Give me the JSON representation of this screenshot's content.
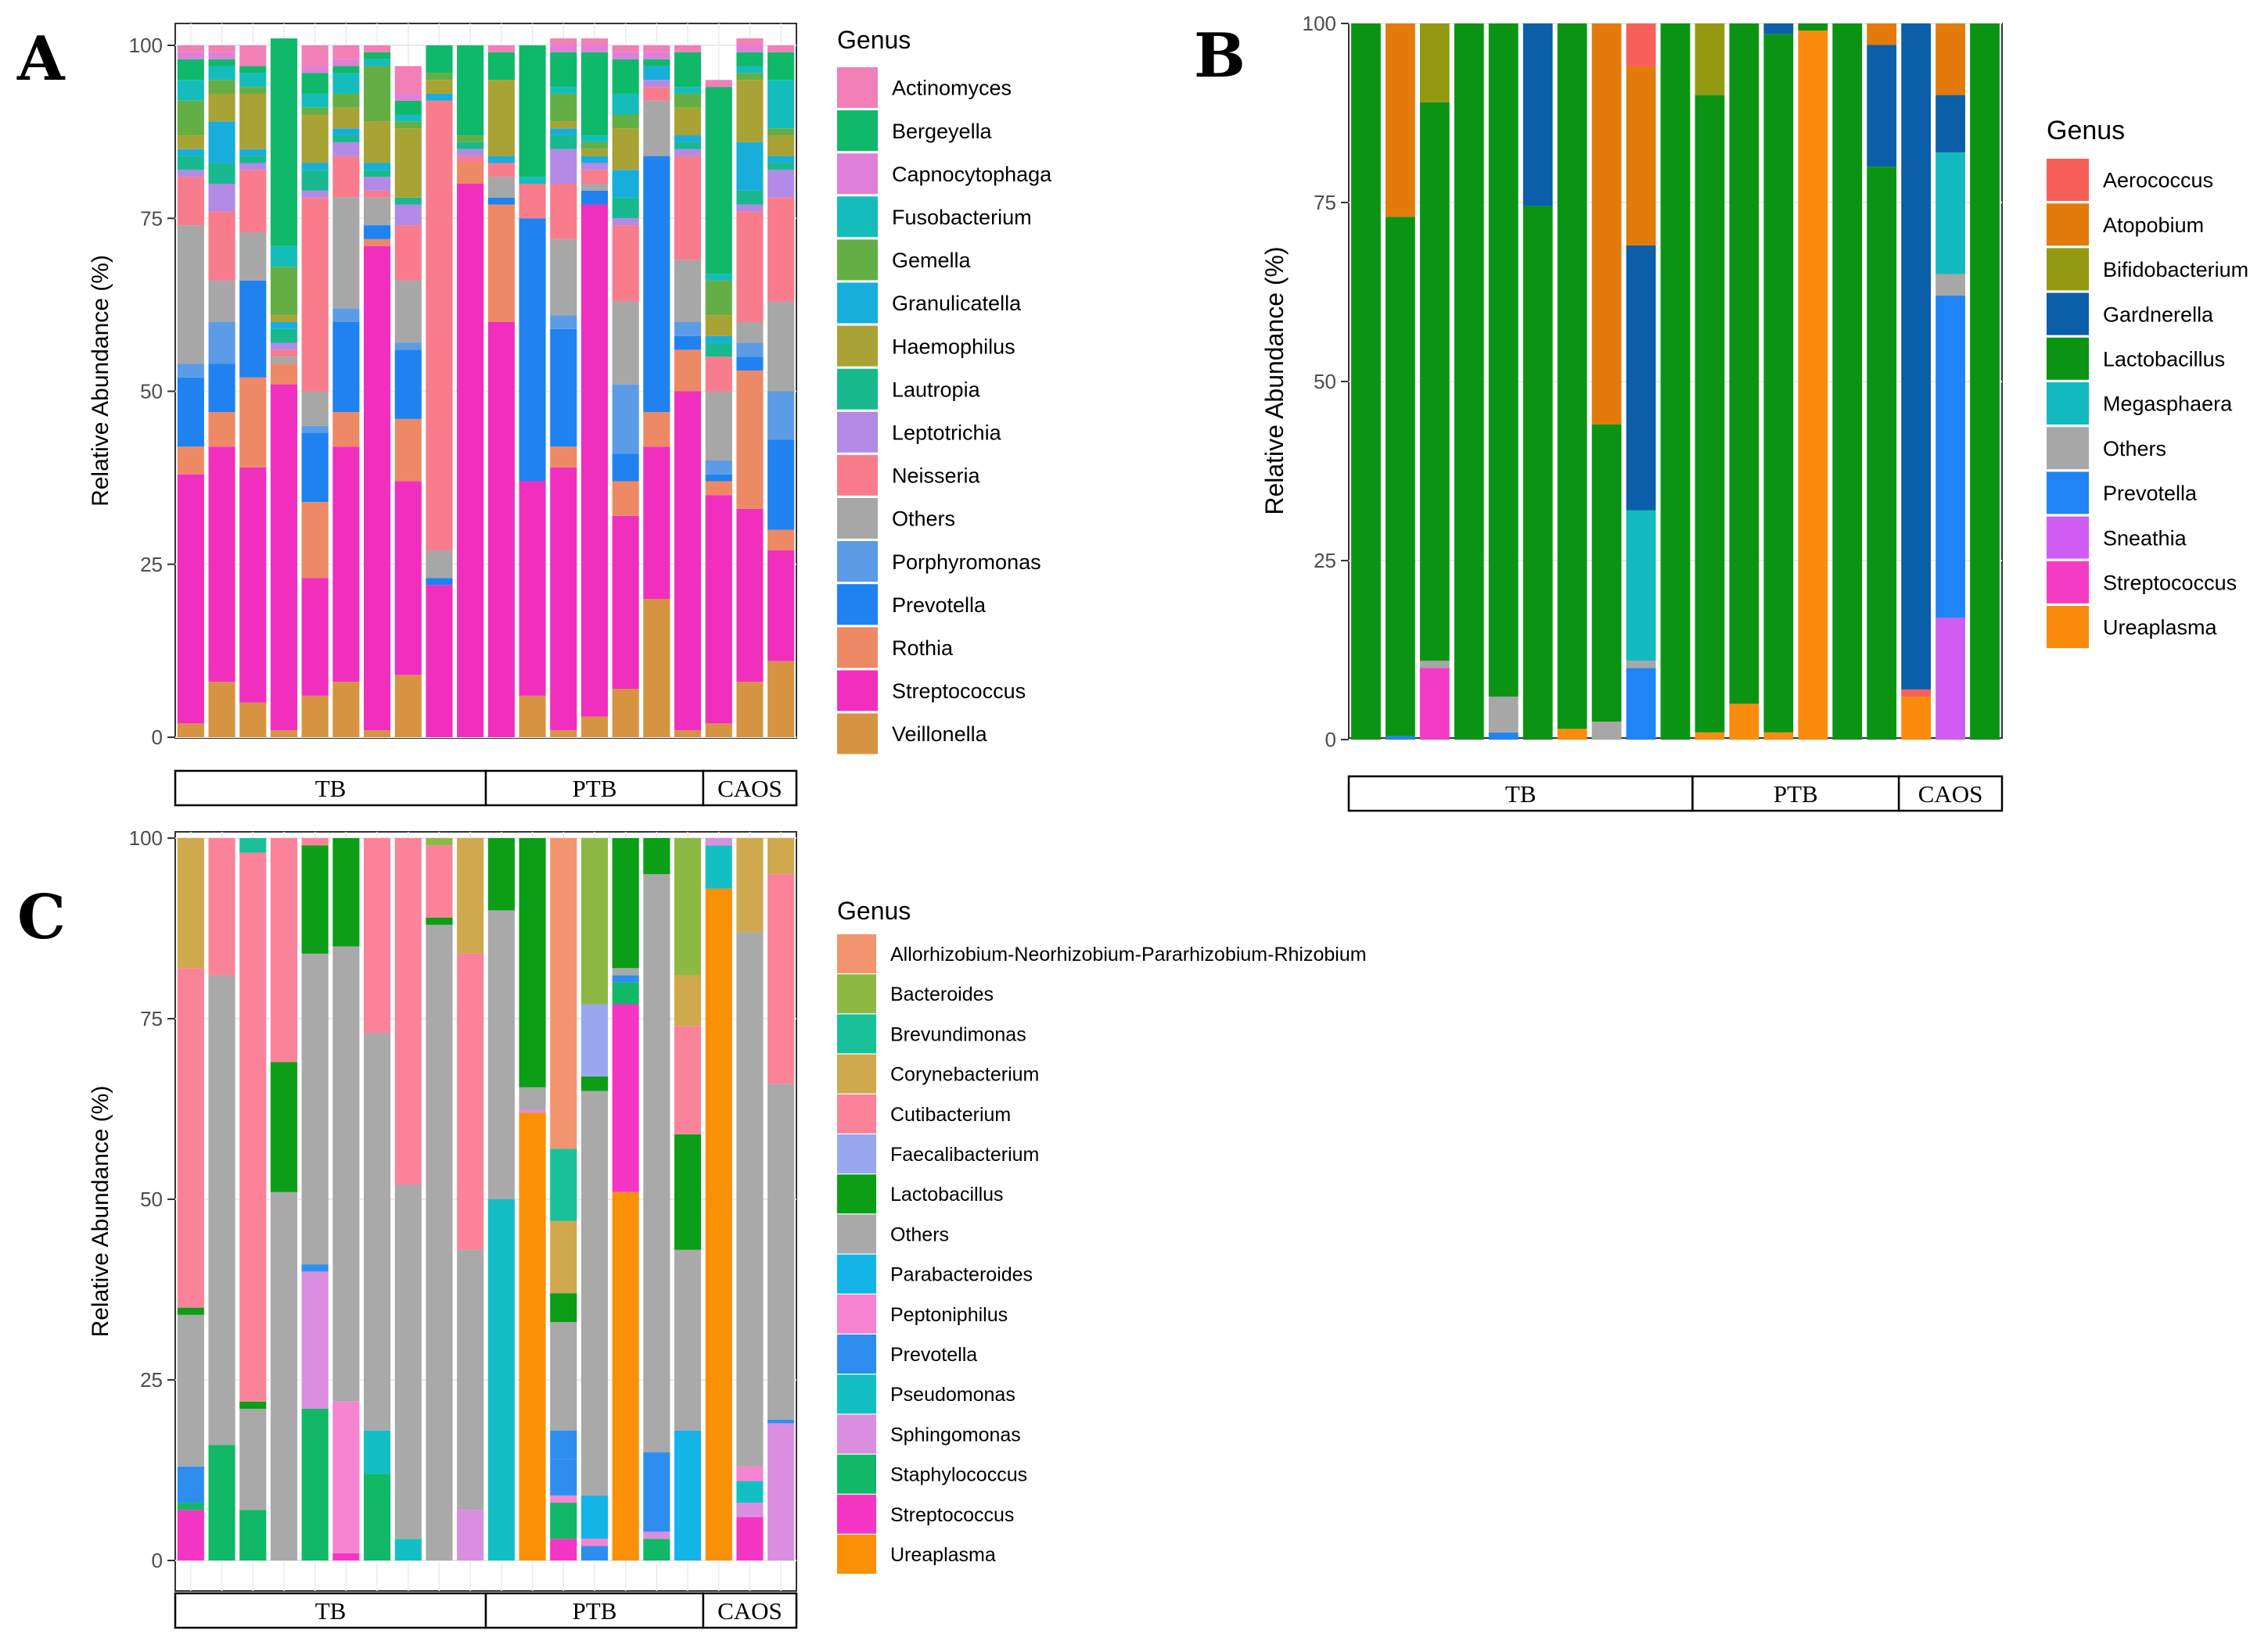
{
  "chart_data": [
    {
      "panel": "A",
      "type": "stacked-bar",
      "ylabel": "Relative Abundance (%)",
      "ylim": [
        0,
        100
      ],
      "yticks": [
        0,
        25,
        50,
        75,
        100
      ],
      "legend_title": "Genus",
      "groups": [
        {
          "label": "TB",
          "count": 10
        },
        {
          "label": "PTB",
          "count": 7
        },
        {
          "label": "CAOS",
          "count": 3
        }
      ],
      "genera": [
        {
          "name": "Actinomyces",
          "color": "#F27FB6"
        },
        {
          "name": "Bergeyella",
          "color": "#10B86A"
        },
        {
          "name": "Capnocytophaga",
          "color": "#E07FD8"
        },
        {
          "name": "Fusobacterium",
          "color": "#14BDBB"
        },
        {
          "name": "Gemella",
          "color": "#63AF45"
        },
        {
          "name": "Granulicatella",
          "color": "#17AEDC"
        },
        {
          "name": "Haemophilus",
          "color": "#A9A234"
        },
        {
          "name": "Lautropia",
          "color": "#19B98F"
        },
        {
          "name": "Leptotrichia",
          "color": "#B38AE6"
        },
        {
          "name": "Neisseria",
          "color": "#F87C8C"
        },
        {
          "name": "Others",
          "color": "#A7A7A7"
        },
        {
          "name": "Porphyromonas",
          "color": "#5C9CE6"
        },
        {
          "name": "Prevotella",
          "color": "#1F82F0"
        },
        {
          "name": "Rothia",
          "color": "#EE8966"
        },
        {
          "name": "Streptococcus",
          "color": "#F02FBF"
        },
        {
          "name": "Veillonella",
          "color": "#D69442"
        }
      ],
      "samples": [
        {
          "Veillonella": 2,
          "Streptococcus": 36,
          "Rothia": 4,
          "Prevotella": 10,
          "Porphyromonas": 2,
          "Others": 20,
          "Neisseria": 7,
          "Leptotrichia": 1,
          "Lautropia": 2,
          "Granulicatella": 1,
          "Haemophilus": 2,
          "Gemella": 5,
          "Fusobacterium": 3,
          "Bergeyella": 3,
          "Capnocytophaga": 1,
          "Actinomyces": 1
        },
        {
          "Veillonella": 8,
          "Streptococcus": 34,
          "Rothia": 5,
          "Prevotella": 7,
          "Porphyromonas": 6,
          "Others": 6,
          "Neisseria": 10,
          "Leptotrichia": 4,
          "Lautropia": 3,
          "Granulicatella": 6,
          "Haemophilus": 4,
          "Gemella": 2,
          "Fusobacterium": 2,
          "Bergeyella": 1,
          "Capnocytophaga": 1,
          "Actinomyces": 1
        },
        {
          "Veillonella": 5,
          "Streptococcus": 34,
          "Rothia": 13,
          "Prevotella": 14,
          "Porphyromonas": 0,
          "Others": 7,
          "Neisseria": 9,
          "Leptotrichia": 1,
          "Lautropia": 1,
          "Granulicatella": 1,
          "Haemophilus": 8,
          "Gemella": 1,
          "Fusobacterium": 2,
          "Bergeyella": 1,
          "Capnocytophaga": 0,
          "Actinomyces": 3
        },
        {
          "Veillonella": 1,
          "Streptococcus": 50,
          "Rothia": 3,
          "Prevotella": 0,
          "Porphyromonas": 0,
          "Others": 1,
          "Neisseria": 1,
          "Leptotrichia": 1,
          "Lautropia": 2,
          "Granulicatella": 1,
          "Haemophilus": 1,
          "Gemella": 7,
          "Fusobacterium": 3,
          "Bergeyella": 30,
          "Capnocytophaga": 0,
          "Actinomyces": 0
        },
        {
          "Veillonella": 6,
          "Streptococcus": 17,
          "Rothia": 11,
          "Prevotella": 10,
          "Porphyromonas": 1,
          "Others": 5,
          "Neisseria": 28,
          "Leptotrichia": 1,
          "Lautropia": 3,
          "Granulicatella": 1,
          "Haemophilus": 7,
          "Gemella": 1,
          "Fusobacterium": 2,
          "Bergeyella": 3,
          "Capnocytophaga": 1,
          "Actinomyces": 3
        },
        {
          "Veillonella": 8,
          "Streptococcus": 34,
          "Rothia": 5,
          "Prevotella": 13,
          "Porphyromonas": 2,
          "Others": 16,
          "Neisseria": 6,
          "Leptotrichia": 2,
          "Lautropia": 1,
          "Granulicatella": 1,
          "Haemophilus": 3,
          "Gemella": 2,
          "Fusobacterium": 3,
          "Bergeyella": 1,
          "Capnocytophaga": 1,
          "Actinomyces": 2
        },
        {
          "Veillonella": 1,
          "Streptococcus": 70,
          "Rothia": 1,
          "Prevotella": 2,
          "Porphyromonas": 0,
          "Others": 4,
          "Neisseria": 1,
          "Leptotrichia": 2,
          "Lautropia": 1,
          "Granulicatella": 1,
          "Haemophilus": 6,
          "Gemella": 8,
          "Fusobacterium": 1,
          "Bergeyella": 1,
          "Capnocytophaga": 0,
          "Actinomyces": 1
        },
        {
          "Veillonella": 9,
          "Streptococcus": 28,
          "Rothia": 9,
          "Prevotella": 10,
          "Porphyromonas": 1,
          "Others": 9,
          "Neisseria": 8,
          "Leptotrichia": 3,
          "Lautropia": 1,
          "Granulicatella": 0,
          "Haemophilus": 10,
          "Gemella": 1,
          "Fusobacterium": 1,
          "Bergeyella": 2,
          "Capnocytophaga": 1,
          "Actinomyces": 4
        },
        {
          "Veillonella": 0,
          "Streptococcus": 22,
          "Rothia": 0,
          "Prevotella": 1,
          "Porphyromonas": 0,
          "Others": 4,
          "Neisseria": 65,
          "Leptotrichia": 0,
          "Lautropia": 0,
          "Granulicatella": 1,
          "Haemophilus": 2,
          "Gemella": 1,
          "Fusobacterium": 0,
          "Bergeyella": 4,
          "Capnocytophaga": 0,
          "Actinomyces": 0
        },
        {
          "Veillonella": 0,
          "Streptococcus": 80,
          "Rothia": 3,
          "Prevotella": 0,
          "Porphyromonas": 0,
          "Others": 0,
          "Neisseria": 1,
          "Leptotrichia": 1,
          "Lautropia": 1,
          "Granulicatella": 0,
          "Haemophilus": 0,
          "Gemella": 1,
          "Fusobacterium": 0,
          "Bergeyella": 13,
          "Capnocytophaga": 0,
          "Actinomyces": 0
        },
        {
          "Veillonella": 0,
          "Streptococcus": 60,
          "Rothia": 17,
          "Prevotella": 1,
          "Porphyromonas": 0,
          "Others": 3,
          "Neisseria": 2,
          "Leptotrichia": 0,
          "Lautropia": 0,
          "Granulicatella": 1,
          "Haemophilus": 11,
          "Gemella": 0,
          "Fusobacterium": 0,
          "Bergeyella": 4,
          "Capnocytophaga": 0,
          "Actinomyces": 1
        },
        {
          "Veillonella": 6,
          "Streptococcus": 31,
          "Rothia": 0,
          "Prevotella": 38,
          "Porphyromonas": 0,
          "Others": 0,
          "Neisseria": 5,
          "Leptotrichia": 0,
          "Lautropia": 0,
          "Granulicatella": 0,
          "Haemophilus": 0,
          "Gemella": 0,
          "Fusobacterium": 1,
          "Bergeyella": 19,
          "Capnocytophaga": 0,
          "Actinomyces": 0
        },
        {
          "Veillonella": 1,
          "Streptococcus": 38,
          "Rothia": 3,
          "Prevotella": 17,
          "Porphyromonas": 2,
          "Others": 11,
          "Neisseria": 8,
          "Leptotrichia": 5,
          "Lautropia": 2,
          "Granulicatella": 1,
          "Haemophilus": 1,
          "Gemella": 4,
          "Fusobacterium": 1,
          "Bergeyella": 5,
          "Capnocytophaga": 1,
          "Actinomyces": 1
        },
        {
          "Veillonella": 3,
          "Streptococcus": 74,
          "Rothia": 0,
          "Prevotella": 2,
          "Porphyromonas": 0,
          "Others": 1,
          "Neisseria": 2,
          "Leptotrichia": 1,
          "Lautropia": 0,
          "Granulicatella": 1,
          "Haemophilus": 1,
          "Gemella": 1,
          "Fusobacterium": 1,
          "Bergeyella": 12,
          "Capnocytophaga": 1,
          "Actinomyces": 1
        },
        {
          "Veillonella": 7,
          "Streptococcus": 25,
          "Rothia": 5,
          "Prevotella": 4,
          "Porphyromonas": 10,
          "Others": 12,
          "Neisseria": 11,
          "Leptotrichia": 1,
          "Lautropia": 3,
          "Granulicatella": 4,
          "Haemophilus": 6,
          "Gemella": 2,
          "Fusobacterium": 3,
          "Bergeyella": 5,
          "Capnocytophaga": 1,
          "Actinomyces": 1
        },
        {
          "Veillonella": 20,
          "Streptococcus": 22,
          "Rothia": 5,
          "Prevotella": 37,
          "Porphyromonas": 0,
          "Others": 8,
          "Neisseria": 2,
          "Leptotrichia": 1,
          "Lautropia": 0,
          "Granulicatella": 2,
          "Haemophilus": 0,
          "Gemella": 0,
          "Fusobacterium": 0,
          "Bergeyella": 1,
          "Capnocytophaga": 1,
          "Actinomyces": 1
        },
        {
          "Veillonella": 1,
          "Streptococcus": 49,
          "Rothia": 6,
          "Prevotella": 2,
          "Porphyromonas": 2,
          "Others": 9,
          "Neisseria": 15,
          "Leptotrichia": 1,
          "Lautropia": 1,
          "Granulicatella": 1,
          "Haemophilus": 4,
          "Gemella": 2,
          "Fusobacterium": 1,
          "Bergeyella": 5,
          "Capnocytophaga": 0,
          "Actinomyces": 1
        },
        {
          "Veillonella": 2,
          "Streptococcus": 33,
          "Rothia": 2,
          "Prevotella": 1,
          "Porphyromonas": 2,
          "Others": 10,
          "Neisseria": 5,
          "Leptotrichia": 0,
          "Lautropia": 2,
          "Granulicatella": 1,
          "Haemophilus": 3,
          "Gemella": 5,
          "Fusobacterium": 1,
          "Bergeyella": 27,
          "Capnocytophaga": 0,
          "Actinomyces": 1
        },
        {
          "Veillonella": 8,
          "Streptococcus": 25,
          "Rothia": 20,
          "Prevotella": 2,
          "Porphyromonas": 2,
          "Others": 3,
          "Neisseria": 16,
          "Leptotrichia": 1,
          "Lautropia": 2,
          "Granulicatella": 7,
          "Haemophilus": 9,
          "Gemella": 1,
          "Fusobacterium": 1,
          "Bergeyella": 2,
          "Capnocytophaga": 1,
          "Actinomyces": 1
        },
        {
          "Veillonella": 11,
          "Streptococcus": 16,
          "Rothia": 3,
          "Prevotella": 13,
          "Porphyromonas": 7,
          "Others": 13,
          "Neisseria": 15,
          "Leptotrichia": 4,
          "Lautropia": 1,
          "Granulicatella": 1,
          "Haemophilus": 3,
          "Gemella": 1,
          "Fusobacterium": 7,
          "Bergeyella": 4,
          "Capnocytophaga": 0,
          "Actinomyces": 1
        }
      ]
    },
    {
      "panel": "B",
      "type": "stacked-bar",
      "ylabel": "Relative Abundance (%)",
      "ylim": [
        0,
        100
      ],
      "yticks": [
        0,
        25,
        50,
        75,
        100
      ],
      "legend_title": "Genus",
      "groups": [
        {
          "label": "TB",
          "count": 10
        },
        {
          "label": "PTB",
          "count": 6
        },
        {
          "label": "CAOS",
          "count": 3
        }
      ],
      "genera": [
        {
          "name": "Aerococcus",
          "color": "#F8605A"
        },
        {
          "name": "Atopobium",
          "color": "#E27B0C"
        },
        {
          "name": "Bifidobacterium",
          "color": "#939A11"
        },
        {
          "name": "Gardnerella",
          "color": "#0A5FA8"
        },
        {
          "name": "Lactobacillus",
          "color": "#0B9414"
        },
        {
          "name": "Megasphaera",
          "color": "#12B9BF"
        },
        {
          "name": "Others",
          "color": "#A7A7A7"
        },
        {
          "name": "Prevotella",
          "color": "#1F84F5"
        },
        {
          "name": "Sneathia",
          "color": "#D05CF3"
        },
        {
          "name": "Streptococcus",
          "color": "#F33CC3"
        },
        {
          "name": "Ureaplasma",
          "color": "#FA8B0D"
        }
      ],
      "samples": [
        {
          "Lactobacillus": 100
        },
        {
          "Prevotella": 0.5,
          "Lactobacillus": 72.5,
          "Atopobium": 27
        },
        {
          "Streptococcus": 10,
          "Others": 1,
          "Lactobacillus": 78,
          "Bifidobacterium": 11
        },
        {
          "Lactobacillus": 100
        },
        {
          "Prevotella": 1,
          "Others": 5,
          "Lactobacillus": 94
        },
        {
          "Lactobacillus": 74.5,
          "Gardnerella": 25.5
        },
        {
          "Ureaplasma": 1.5,
          "Lactobacillus": 98.5
        },
        {
          "Others": 2.5,
          "Lactobacillus": 41.5,
          "Atopobium": 56
        },
        {
          "Prevotella": 10,
          "Others": 1,
          "Megasphaera": 21,
          "Gardnerella": 37,
          "Atopobium": 25,
          "Aerococcus": 6
        },
        {
          "Lactobacillus": 100
        },
        {
          "Ureaplasma": 1,
          "Lactobacillus": 89,
          "Bifidobacterium": 10
        },
        {
          "Ureaplasma": 5,
          "Lactobacillus": 95
        },
        {
          "Ureaplasma": 1,
          "Lactobacillus": 97.5,
          "Gardnerella": 1.5
        },
        {
          "Ureaplasma": 99,
          "Lactobacillus": 1
        },
        {
          "Lactobacillus": 100
        },
        {
          "Lactobacillus": 80,
          "Gardnerella": 17,
          "Atopobium": 3
        },
        {
          "Ureaplasma": 6,
          "Aerococcus": 1,
          "Gardnerella": 93
        },
        {
          "Sneathia": 17,
          "Prevotella": 45,
          "Others": 3,
          "Megasphaera": 17,
          "Gardnerella": 8,
          "Atopobium": 10
        },
        {
          "Lactobacillus": 100
        }
      ]
    },
    {
      "panel": "C",
      "type": "stacked-bar",
      "ylabel": "Relative Abundance (%)",
      "ylim": [
        0,
        100
      ],
      "yticks": [
        0,
        25,
        50,
        75,
        100
      ],
      "legend_title": "Genus",
      "groups": [
        {
          "label": "TB",
          "count": 10
        },
        {
          "label": "PTB",
          "count": 7
        },
        {
          "label": "CAOS",
          "count": 3
        }
      ],
      "genera": [
        {
          "name": "Allorhizobium-Neorhizobium-Pararhizobium-Rhizobium",
          "color": "#F2956E"
        },
        {
          "name": "Bacteroides",
          "color": "#8DB843"
        },
        {
          "name": "Brevundimonas",
          "color": "#18C19A"
        },
        {
          "name": "Corynebacterium",
          "color": "#D0A84E"
        },
        {
          "name": "Cutibacterium",
          "color": "#FA8399"
        },
        {
          "name": "Faecalibacterium",
          "color": "#98A8EE"
        },
        {
          "name": "Lactobacillus",
          "color": "#0B9E16"
        },
        {
          "name": "Others",
          "color": "#A9A9A9"
        },
        {
          "name": "Parabacteroides",
          "color": "#14B4E6"
        },
        {
          "name": "Peptoniphilus",
          "color": "#F684D0"
        },
        {
          "name": "Prevotella",
          "color": "#2D8EF0"
        },
        {
          "name": "Pseudomonas",
          "color": "#13BFC4"
        },
        {
          "name": "Sphingomonas",
          "color": "#D98EE0"
        },
        {
          "name": "Staphylococcus",
          "color": "#10B867"
        },
        {
          "name": "Streptococcus",
          "color": "#F535C4"
        },
        {
          "name": "Ureaplasma",
          "color": "#FA9005"
        }
      ],
      "samples": [
        {
          "Streptococcus": 7,
          "Staphylococcus": 1,
          "Prevotella": 5,
          "Others": 21,
          "Lactobacillus": 1,
          "Cutibacterium": 47,
          "Corynebacterium": 18
        },
        {
          "Staphylococcus": 16,
          "Others": 65,
          "Cutibacterium": 19
        },
        {
          "Staphylococcus": 7,
          "Others": 14,
          "Lactobacillus": 1,
          "Cutibacterium": 76,
          "Brevundimonas": 2
        },
        {
          "Others": 51,
          "Lactobacillus": 18,
          "Cutibacterium": 31
        },
        {
          "Staphylococcus": 21,
          "Sphingomonas": 19,
          "Prevotella": 1,
          "Others": 43,
          "Lactobacillus": 15,
          "Cutibacterium": 1
        },
        {
          "Streptococcus": 1,
          "Peptoniphilus": 21,
          "Others": 63,
          "Lactobacillus": 15
        },
        {
          "Staphylococcus": 12,
          "Pseudomonas": 6,
          "Others": 55,
          "Cutibacterium": 27
        },
        {
          "Pseudomonas": 3,
          "Others": 49,
          "Cutibacterium": 48
        },
        {
          "Others": 88,
          "Lactobacillus": 1,
          "Cutibacterium": 10,
          "Bacteroides": 1
        },
        {
          "Sphingomonas": 7,
          "Others": 36,
          "Cutibacterium": 41,
          "Corynebacterium": 16
        },
        {
          "Pseudomonas": 50,
          "Others": 40,
          "Lactobacillus": 10
        },
        {
          "Ureaplasma": 62,
          "Sphingomonas": 0.5,
          "Others": 3,
          "Lactobacillus": 34.5
        },
        {
          "Streptococcus": 3,
          "Staphylococcus": 5,
          "Peptoniphilus": 1,
          "Prevotella": 5,
          "Peptoniphilus2": 4,
          "Others": 15,
          "Lactobacillus": 4,
          "Corynebacterium": 10,
          "Brevundimonas": 10,
          "Allorhizobium-Neorhizobium-Pararhizobium-Rhizobium": 43
        },
        {
          "Prevotella": 2,
          "Peptoniphilus": 1,
          "Parabacteroides": 6,
          "Others": 56,
          "Lactobacillus": 2,
          "Faecalibacterium": 10,
          "Bacteroides": 23
        },
        {
          "Ureaplasma": 51,
          "Streptococcus": 26,
          "Staphylococcus": 3,
          "Prevotella": 1,
          "Others": 1,
          "Lactobacillus": 18
        },
        {
          "Staphylococcus": 3,
          "Sphingomonas": 1,
          "Prevotella": 11,
          "Others": 80,
          "Lactobacillus": 5
        },
        {
          "Parabacteroides": 18,
          "Others": 25,
          "Lactobacillus": 16,
          "Cutibacterium": 15,
          "Corynebacterium": 7,
          "Bacteroides": 19
        },
        {
          "Ureaplasma": 93,
          "Pseudomonas": 6,
          "Sphingomonas": 1
        },
        {
          "Streptococcus": 6,
          "Sphingomonas": 2,
          "Pseudomonas": 3,
          "Peptoniphilus": 2,
          "Others": 74,
          "Corynebacterium": 13
        },
        {
          "Sphingomonas": 19,
          "Prevotella": 0.5,
          "Others": 46.5,
          "Cutibacterium": 29,
          "Corynebacterium": 5
        }
      ]
    }
  ],
  "panel_labels": [
    "A",
    "B",
    "C"
  ]
}
